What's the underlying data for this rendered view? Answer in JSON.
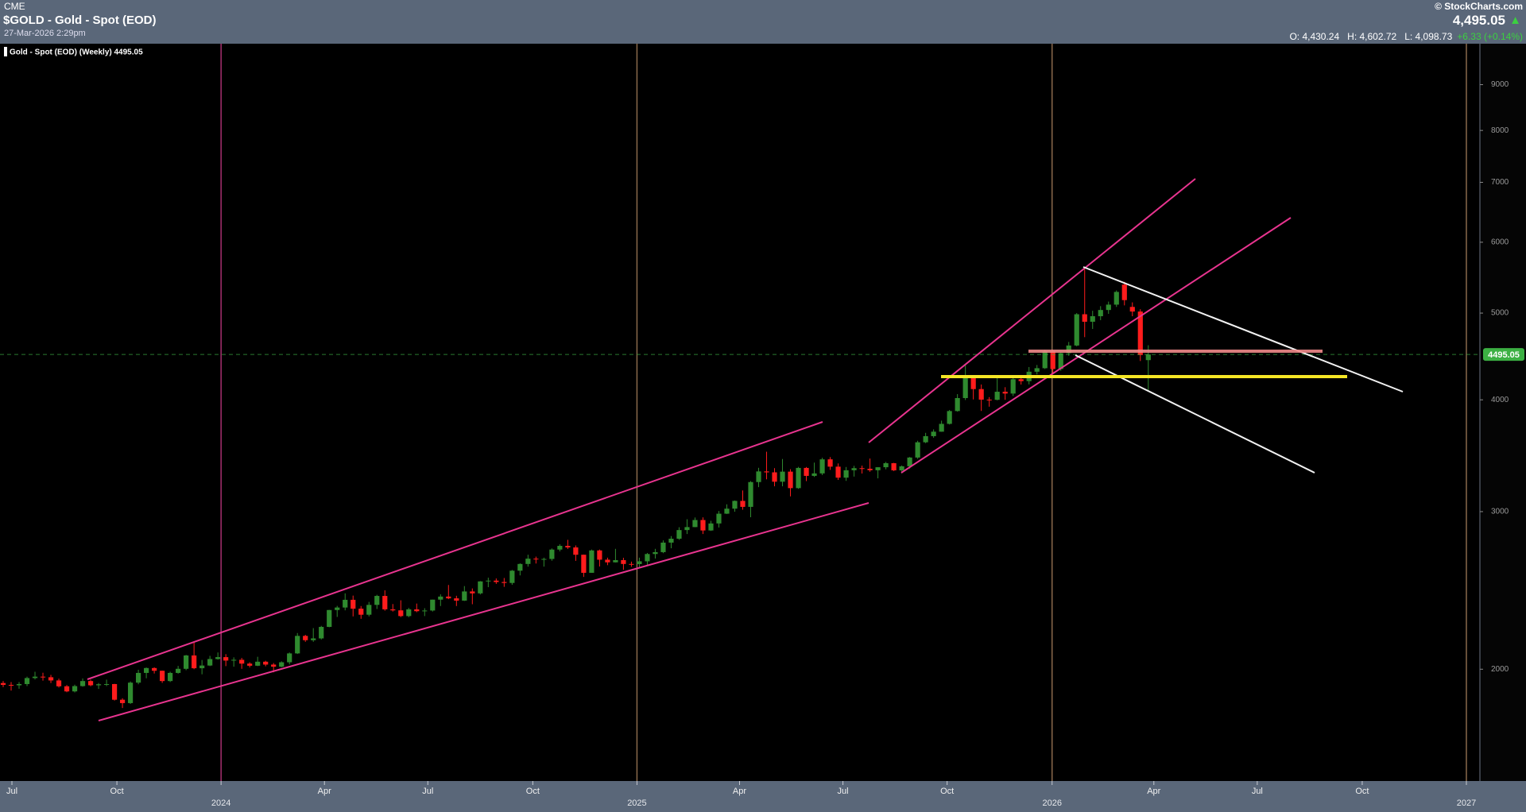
{
  "header": {
    "exchange": "CME",
    "symbol": "$GOLD - Gold - Spot (EOD)",
    "timestamp": "27-Mar-2026 2:29pm",
    "brand": "© StockCharts.com",
    "last": "4,495.05",
    "open": "O: 4,430.24",
    "high": "H: 4,602.72",
    "low": "L: 4,098.73",
    "change": "+6.33 (+0.14%)"
  },
  "chart_data": {
    "type": "candlestick",
    "legend_label": "Gold - Spot (EOD) (Weekly) 4495.05",
    "log_scale": true,
    "grid": false,
    "up_color": "#2f8a2f",
    "down_color": "#ff1c1c",
    "last_price_color": "#3cb043",
    "xlim": [
      -0.4,
      185.7
    ],
    "ylim": [
      1500,
      10000
    ],
    "yticks": [
      2000,
      3000,
      4000,
      5000,
      6000,
      7000,
      8000,
      9000
    ],
    "xticks": [
      {
        "value": 1.1,
        "label": "Jul"
      },
      {
        "value": 14.3,
        "label": "Oct"
      },
      {
        "value": 27.4,
        "label": "2024"
      },
      {
        "value": 40.4,
        "label": "Apr"
      },
      {
        "value": 53.4,
        "label": "Jul"
      },
      {
        "value": 66.6,
        "label": "Oct"
      },
      {
        "value": 79.7,
        "label": "2025"
      },
      {
        "value": 92.6,
        "label": "Apr"
      },
      {
        "value": 105.6,
        "label": "Jul"
      },
      {
        "value": 118.7,
        "label": "Oct"
      },
      {
        "value": 131.9,
        "label": "2026"
      },
      {
        "value": 144.7,
        "label": "Apr"
      },
      {
        "value": 157.7,
        "label": "Jul"
      },
      {
        "value": 170.9,
        "label": "Oct"
      },
      {
        "value": 184,
        "label": "2027"
      }
    ],
    "x": [
      0,
      1,
      2,
      3,
      4,
      5,
      6,
      7,
      8,
      9,
      10,
      11,
      12,
      13,
      14,
      15,
      16,
      17,
      18,
      19,
      20,
      21,
      22,
      23,
      24,
      25,
      26,
      27,
      28,
      29,
      30,
      31,
      32,
      33,
      34,
      35,
      36,
      37,
      38,
      39,
      40,
      41,
      42,
      43,
      44,
      45,
      46,
      47,
      48,
      49,
      50,
      51,
      52,
      53,
      54,
      55,
      56,
      57,
      58,
      59,
      60,
      61,
      62,
      63,
      64,
      65,
      66,
      67,
      68,
      69,
      70,
      71,
      72,
      73,
      74,
      75,
      76,
      77,
      78,
      79,
      80,
      81,
      82,
      83,
      84,
      85,
      86,
      87,
      88,
      89,
      90,
      91,
      92,
      93,
      94,
      95,
      96,
      97,
      98,
      99,
      100,
      101,
      102,
      103,
      104,
      105,
      106,
      107,
      108,
      109,
      110,
      111,
      112,
      113,
      114,
      115,
      116,
      117,
      118,
      119,
      120,
      121,
      122,
      123,
      124,
      125,
      126,
      127,
      128,
      129,
      130,
      131,
      132,
      133,
      134,
      135,
      136,
      137,
      138,
      139,
      140,
      141,
      142,
      143,
      144
    ],
    "candles": [
      [
        1930,
        1940,
        1910,
        1921
      ],
      [
        1921,
        1935,
        1893,
        1919
      ],
      [
        1919,
        1935,
        1902,
        1925
      ],
      [
        1925,
        1962,
        1915,
        1955
      ],
      [
        1955,
        1987,
        1948,
        1962
      ],
      [
        1962,
        1982,
        1942,
        1959
      ],
      [
        1959,
        1971,
        1930,
        1943
      ],
      [
        1943,
        1952,
        1908,
        1914
      ],
      [
        1914,
        1920,
        1885,
        1889
      ],
      [
        1889,
        1922,
        1884,
        1915
      ],
      [
        1915,
        1953,
        1912,
        1940
      ],
      [
        1940,
        1947,
        1914,
        1919
      ],
      [
        1919,
        1930,
        1901,
        1924
      ],
      [
        1924,
        1947,
        1915,
        1925
      ],
      [
        1925,
        1926,
        1845,
        1849
      ],
      [
        1849,
        1856,
        1810,
        1833
      ],
      [
        1833,
        1938,
        1829,
        1932
      ],
      [
        1932,
        1997,
        1924,
        1981
      ],
      [
        1981,
        2009,
        1954,
        2006
      ],
      [
        2006,
        2010,
        1978,
        1992
      ],
      [
        1992,
        1993,
        1931,
        1940
      ],
      [
        1940,
        1987,
        1935,
        1981
      ],
      [
        1981,
        2017,
        1977,
        2002
      ],
      [
        2002,
        2075,
        1995,
        2072
      ],
      [
        2072,
        2146,
        2000,
        2005
      ],
      [
        2005,
        2048,
        1974,
        2019
      ],
      [
        2019,
        2070,
        2016,
        2053
      ],
      [
        2053,
        2088,
        2050,
        2063
      ],
      [
        2063,
        2079,
        2016,
        2045
      ],
      [
        2045,
        2062,
        2013,
        2049
      ],
      [
        2049,
        2059,
        2002,
        2029
      ],
      [
        2029,
        2036,
        2009,
        2018
      ],
      [
        2018,
        2065,
        2016,
        2039
      ],
      [
        2039,
        2044,
        2015,
        2024
      ],
      [
        2024,
        2032,
        1984,
        2013
      ],
      [
        2013,
        2041,
        2010,
        2036
      ],
      [
        2036,
        2088,
        2025,
        2083
      ],
      [
        2083,
        2195,
        2080,
        2179
      ],
      [
        2179,
        2185,
        2146,
        2155
      ],
      [
        2155,
        2223,
        2146,
        2165
      ],
      [
        2165,
        2236,
        2159,
        2230
      ],
      [
        2230,
        2330,
        2228,
        2329
      ],
      [
        2329,
        2354,
        2288,
        2344
      ],
      [
        2344,
        2431,
        2327,
        2391
      ],
      [
        2391,
        2417,
        2291,
        2337
      ],
      [
        2337,
        2353,
        2277,
        2301
      ],
      [
        2301,
        2378,
        2291,
        2360
      ],
      [
        2360,
        2422,
        2335,
        2415
      ],
      [
        2415,
        2450,
        2325,
        2333
      ],
      [
        2333,
        2365,
        2320,
        2327
      ],
      [
        2327,
        2388,
        2287,
        2293
      ],
      [
        2293,
        2342,
        2286,
        2333
      ],
      [
        2333,
        2368,
        2316,
        2322
      ],
      [
        2322,
        2340,
        2293,
        2326
      ],
      [
        2326,
        2392,
        2320,
        2392
      ],
      [
        2392,
        2425,
        2353,
        2411
      ],
      [
        2411,
        2484,
        2395,
        2400
      ],
      [
        2400,
        2416,
        2353,
        2386
      ],
      [
        2386,
        2477,
        2384,
        2443
      ],
      [
        2443,
        2462,
        2364,
        2431
      ],
      [
        2431,
        2509,
        2424,
        2507
      ],
      [
        2507,
        2531,
        2470,
        2512
      ],
      [
        2512,
        2526,
        2491,
        2503
      ],
      [
        2503,
        2529,
        2472,
        2497
      ],
      [
        2497,
        2582,
        2485,
        2577
      ],
      [
        2577,
        2626,
        2546,
        2622
      ],
      [
        2622,
        2685,
        2604,
        2658
      ],
      [
        2658,
        2672,
        2625,
        2653
      ],
      [
        2653,
        2665,
        2604,
        2656
      ],
      [
        2656,
        2729,
        2644,
        2721
      ],
      [
        2721,
        2758,
        2708,
        2747
      ],
      [
        2747,
        2790,
        2725,
        2736
      ],
      [
        2736,
        2750,
        2643,
        2685
      ],
      [
        2685,
        2686,
        2536,
        2563
      ],
      [
        2563,
        2721,
        2563,
        2715
      ],
      [
        2715,
        2721,
        2605,
        2651
      ],
      [
        2651,
        2665,
        2614,
        2633
      ],
      [
        2633,
        2726,
        2632,
        2648
      ],
      [
        2648,
        2664,
        2583,
        2622
      ],
      [
        2622,
        2638,
        2603,
        2621
      ],
      [
        2621,
        2665,
        2597,
        2640
      ],
      [
        2640,
        2697,
        2615,
        2690
      ],
      [
        2690,
        2726,
        2659,
        2703
      ],
      [
        2703,
        2786,
        2696,
        2770
      ],
      [
        2770,
        2817,
        2730,
        2798
      ],
      [
        2798,
        2882,
        2790,
        2861
      ],
      [
        2861,
        2942,
        2832,
        2883
      ],
      [
        2883,
        2955,
        2882,
        2936
      ],
      [
        2936,
        2956,
        2832,
        2858
      ],
      [
        2858,
        2930,
        2855,
        2910
      ],
      [
        2910,
        3005,
        2880,
        2984
      ],
      [
        2984,
        3057,
        2982,
        3023
      ],
      [
        3023,
        3087,
        2999,
        3084
      ],
      [
        3084,
        3168,
        3015,
        3037
      ],
      [
        3037,
        3245,
        2957,
        3237
      ],
      [
        3237,
        3358,
        3195,
        3327
      ],
      [
        3327,
        3500,
        3260,
        3319
      ],
      [
        3319,
        3355,
        3202,
        3240
      ],
      [
        3240,
        3435,
        3202,
        3325
      ],
      [
        3325,
        3346,
        3120,
        3187
      ],
      [
        3187,
        3366,
        3181,
        3357
      ],
      [
        3357,
        3365,
        3245,
        3289
      ],
      [
        3289,
        3403,
        3280,
        3310
      ],
      [
        3310,
        3446,
        3296,
        3432
      ],
      [
        3432,
        3452,
        3340,
        3368
      ],
      [
        3368,
        3396,
        3255,
        3274
      ],
      [
        3274,
        3365,
        3247,
        3337
      ],
      [
        3337,
        3375,
        3283,
        3355
      ],
      [
        3355,
        3377,
        3309,
        3350
      ],
      [
        3350,
        3439,
        3324,
        3337
      ],
      [
        3337,
        3363,
        3268,
        3363
      ],
      [
        3363,
        3409,
        3345,
        3398
      ],
      [
        3398,
        3401,
        3330,
        3336
      ],
      [
        3336,
        3378,
        3311,
        3371
      ],
      [
        3371,
        3453,
        3351,
        3448
      ],
      [
        3448,
        3600,
        3436,
        3586
      ],
      [
        3586,
        3674,
        3578,
        3643
      ],
      [
        3643,
        3707,
        3628,
        3685
      ],
      [
        3685,
        3791,
        3684,
        3760
      ],
      [
        3760,
        3897,
        3754,
        3886
      ],
      [
        3886,
        4059,
        3880,
        4018
      ],
      [
        4018,
        4381,
        3998,
        4252
      ],
      [
        4252,
        4263,
        4004,
        4112
      ],
      [
        4112,
        4161,
        3887,
        4002
      ],
      [
        4002,
        4028,
        3930,
        4000
      ],
      [
        4000,
        4245,
        3995,
        4084
      ],
      [
        4084,
        4132,
        4000,
        4065
      ],
      [
        4065,
        4256,
        4040,
        4218
      ],
      [
        4218,
        4264,
        4160,
        4197
      ],
      [
        4197,
        4352,
        4162,
        4300
      ],
      [
        4300,
        4375,
        4270,
        4339
      ],
      [
        4339,
        4550,
        4330,
        4533
      ],
      [
        4533,
        4550,
        4275,
        4330
      ],
      [
        4330,
        4520,
        4310,
        4510
      ],
      [
        4510,
        4642,
        4480,
        4600
      ],
      [
        4600,
        5000,
        4590,
        4985
      ],
      [
        4985,
        5600,
        4700,
        4890
      ],
      [
        4890,
        5030,
        4800,
        4960
      ],
      [
        4960,
        5090,
        4910,
        5040
      ],
      [
        5040,
        5150,
        4990,
        5110
      ],
      [
        5110,
        5300,
        5080,
        5280
      ],
      [
        5380,
        5420,
        5100,
        5170
      ],
      [
        5080,
        5140,
        4960,
        5020
      ],
      [
        5020,
        5050,
        4420,
        4488.72
      ],
      [
        4430.24,
        4602.72,
        4098.73,
        4495.05
      ]
    ]
  }
}
